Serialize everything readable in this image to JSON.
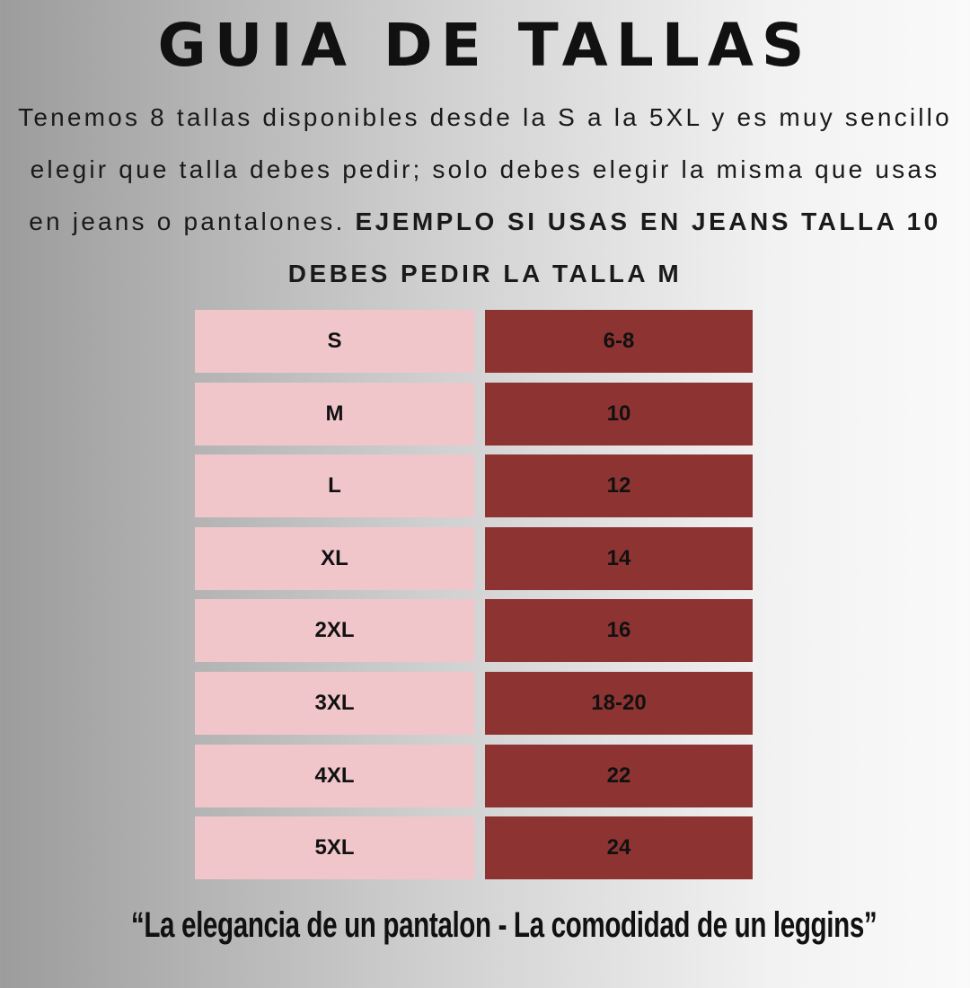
{
  "title": "GUIA DE TALLAS",
  "intro": {
    "text": "Tenemos 8 tallas disponibles desde la S a la 5XL y es muy sencillo elegir que talla debes pedir;  solo debes elegir la misma que usas en jeans o pantalones.",
    "emphasis": "EJEMPLO SI USAS EN JEANS TALLA 10 DEBES PEDIR LA TALLA M"
  },
  "table": {
    "rows": [
      [
        "S",
        "6-8"
      ],
      [
        "M",
        "10"
      ],
      [
        "L",
        "12"
      ],
      [
        "XL",
        "14"
      ],
      [
        "2XL",
        "16"
      ],
      [
        "3XL",
        "18-20"
      ],
      [
        "4XL",
        "22"
      ],
      [
        "5XL",
        "24"
      ]
    ]
  },
  "quote": "“La elegancia de un pantalon - La comodidad de un leggins”"
}
